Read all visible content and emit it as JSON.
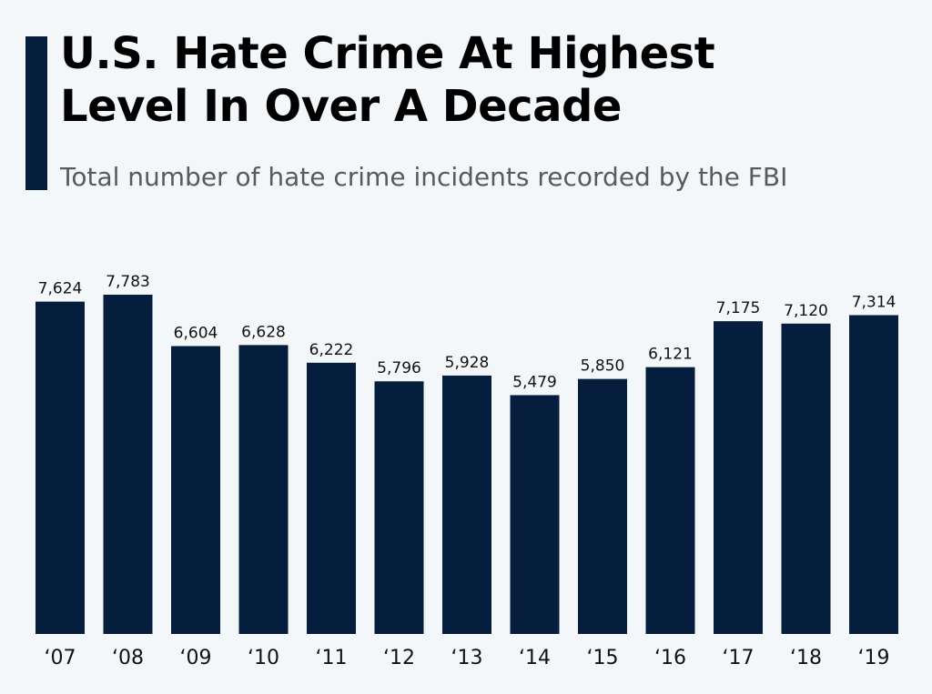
{
  "header": {
    "title_line1": "U.S. Hate Crime At Highest",
    "title_line2": "Level In Over A Decade",
    "subtitle": "Total number of hate crime incidents recorded by the FBI"
  },
  "colors": {
    "bar": "#061e3e",
    "background": "#f4f7fa"
  },
  "chart_data": {
    "type": "bar",
    "title": "U.S. Hate Crime At Highest Level In Over A Decade",
    "subtitle": "Total number of hate crime incidents recorded by the FBI",
    "categories": [
      "‘07",
      "‘08",
      "‘09",
      "‘10",
      "‘11",
      "‘12",
      "‘13",
      "‘14",
      "‘15",
      "‘16",
      "‘17",
      "‘18",
      "‘19"
    ],
    "values": [
      7624,
      7783,
      6604,
      6628,
      6222,
      5796,
      5928,
      5479,
      5850,
      6121,
      7175,
      7120,
      7314
    ],
    "value_labels": [
      "7,624",
      "7,783",
      "6,604",
      "6,628",
      "6,222",
      "5,796",
      "5,928",
      "5,479",
      "5,850",
      "6,121",
      "7,175",
      "7,120",
      "7,314"
    ],
    "xlabel": "",
    "ylabel": "",
    "ylim": [
      0,
      7783
    ],
    "grid": false
  }
}
